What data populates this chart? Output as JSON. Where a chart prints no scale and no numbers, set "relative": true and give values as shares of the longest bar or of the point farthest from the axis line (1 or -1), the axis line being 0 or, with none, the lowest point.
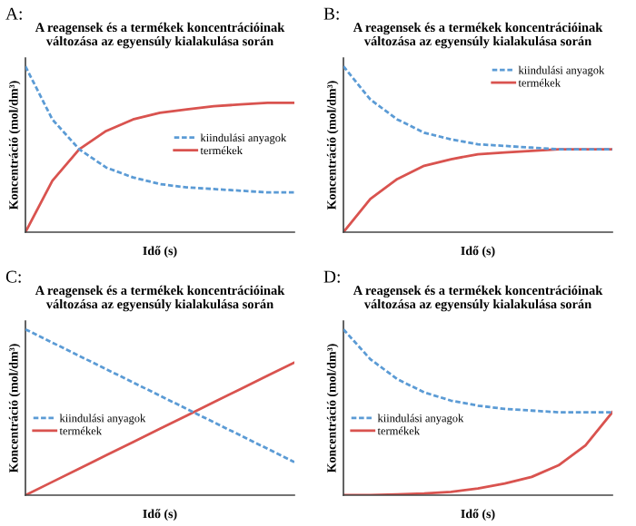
{
  "chart_data": [
    {
      "type": "line",
      "title": "A reagensek és a termékek koncentrációinak\nváltozása az egyensúly kialakulása során",
      "xlabel": "Idő (s)",
      "ylabel": "Koncentráció (mol/dm³)",
      "annotations": [
        "A:"
      ],
      "relative": true,
      "legend": "right",
      "categories": [
        null,
        null,
        null,
        null,
        null,
        null,
        null,
        null,
        null,
        null,
        null
      ],
      "series": [
        {
          "name": "kiindulási anyagok",
          "color": "#5b9bd5",
          "line_style": "dashed",
          "values": [
            1,
            0.68,
            0.5,
            0.39,
            0.33,
            0.29,
            0.27,
            0.26,
            0.25,
            0.24,
            0.24
          ]
        },
        {
          "name": "termékek",
          "color": "#d9534f",
          "line_style": "solid",
          "values": [
            0,
            0.31,
            0.5,
            0.61,
            0.68,
            0.72,
            0.74,
            0.76,
            0.77,
            0.78,
            0.78
          ]
        }
      ]
    },
    {
      "type": "line",
      "title": "A reagensek és a termékek koncentrációinak\nváltozása az egyensúly kialakulása során",
      "xlabel": "Idő (s)",
      "ylabel": "Koncentráció (mol/dm³)",
      "annotations": [
        "B:"
      ],
      "relative": true,
      "legend": "upper right",
      "categories": [
        null,
        null,
        null,
        null,
        null,
        null,
        null,
        null,
        null,
        null,
        null
      ],
      "series": [
        {
          "name": "kiindulási anyagok",
          "color": "#5b9bd5",
          "line_style": "dashed",
          "values": [
            1,
            0.8,
            0.68,
            0.6,
            0.56,
            0.53,
            0.52,
            0.51,
            0.5,
            0.5,
            0.5
          ]
        },
        {
          "name": "termékek",
          "color": "#d9534f",
          "line_style": "solid",
          "values": [
            0,
            0.2,
            0.32,
            0.4,
            0.44,
            0.47,
            0.48,
            0.49,
            0.5,
            0.5,
            0.5
          ]
        }
      ]
    },
    {
      "type": "line",
      "title": "A reagensek és a termékek koncentrációinak\nváltozása az egyensúly kialakulása során",
      "xlabel": "Idő (s)",
      "ylabel": "Koncentráció (mol/dm³)",
      "annotations": [
        "C:"
      ],
      "relative": true,
      "legend": "center left",
      "categories": [
        null,
        null,
        null,
        null,
        null,
        null,
        null,
        null,
        null,
        null,
        null
      ],
      "series": [
        {
          "name": "kiindulási anyagok",
          "color": "#5b9bd5",
          "line_style": "dashed",
          "values": [
            1,
            0.92,
            0.84,
            0.76,
            0.68,
            0.6,
            0.52,
            0.44,
            0.36,
            0.28,
            0.2
          ]
        },
        {
          "name": "termékek",
          "color": "#d9534f",
          "line_style": "solid",
          "values": [
            0,
            0.08,
            0.16,
            0.24,
            0.32,
            0.4,
            0.48,
            0.56,
            0.64,
            0.72,
            0.8
          ]
        }
      ]
    },
    {
      "type": "line",
      "title": "A reagensek és a termékek koncentrációinak\nváltozása az egyensúly kialakulása során",
      "xlabel": "Idő (s)",
      "ylabel": "Koncentráció (mol/dm³)",
      "annotations": [
        "D:"
      ],
      "relative": true,
      "legend": "center left",
      "categories": [
        null,
        null,
        null,
        null,
        null,
        null,
        null,
        null,
        null,
        null,
        null
      ],
      "series": [
        {
          "name": "kiindulási anyagok",
          "color": "#5b9bd5",
          "line_style": "dashed",
          "values": [
            1,
            0.82,
            0.7,
            0.62,
            0.57,
            0.54,
            0.52,
            0.51,
            0.5,
            0.5,
            0.5
          ]
        },
        {
          "name": "termékek",
          "color": "#d9534f",
          "line_style": "solid",
          "values": [
            0,
            0,
            0.005,
            0.01,
            0.02,
            0.04,
            0.07,
            0.11,
            0.18,
            0.3,
            0.5
          ]
        }
      ]
    }
  ]
}
